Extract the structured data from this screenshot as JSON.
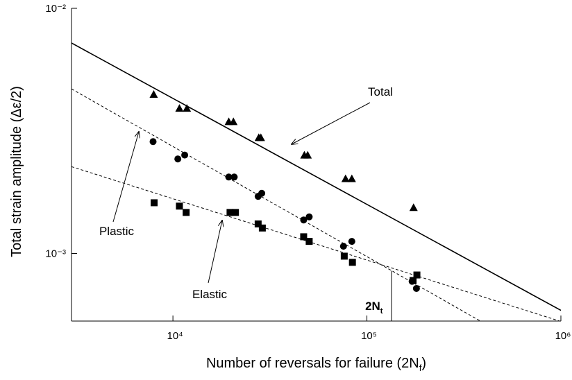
{
  "chart_data": {
    "type": "scatter",
    "xlabel": {
      "text": "Number of reversals for failure (2N",
      "subscript": "f",
      "suffix": ")"
    },
    "ylabel": "Total strain amplitude  (Δε/2)",
    "xscale": "log",
    "yscale": "log",
    "xlim": [
      3000,
      1000000
    ],
    "ylim": [
      0.00053,
      0.01
    ],
    "xticks": [
      {
        "value": 10000,
        "label": "10⁴"
      },
      {
        "value": 100000,
        "label": "10⁵"
      },
      {
        "value": 1000000,
        "label": "10⁶"
      }
    ],
    "yticks": [
      {
        "value": 0.001,
        "label": "10⁻³"
      },
      {
        "value": 0.01,
        "label": "10⁻²"
      }
    ],
    "series": [
      {
        "name": "Total",
        "marker": "triangle",
        "color": "#000000",
        "x": [
          7960,
          10800,
          11800,
          19400,
          20500,
          27700,
          28400,
          47600,
          49500,
          77600,
          83600,
          174000
        ],
        "values": [
          0.00446,
          0.00391,
          0.00391,
          0.00345,
          0.00345,
          0.00297,
          0.00297,
          0.00252,
          0.00252,
          0.00202,
          0.00202,
          0.00154
        ],
        "fit": {
          "dash": false,
          "x": [
            3000,
            1000000
          ],
          "values": [
            0.00722,
            0.000586
          ]
        }
      },
      {
        "name": "Plastic",
        "marker": "circle",
        "color": "#000000",
        "x": [
          7900,
          10600,
          11500,
          19400,
          20700,
          27500,
          28700,
          47200,
          50400,
          75700,
          83600,
          171000,
          180000
        ],
        "values": [
          0.00286,
          0.00243,
          0.00252,
          0.00205,
          0.00205,
          0.00171,
          0.00176,
          0.00137,
          0.00141,
          0.00107,
          0.00112,
          0.00077,
          0.00072
        ],
        "fit": {
          "dash": true,
          "x": [
            3000,
            388000
          ],
          "values": [
            0.00469,
            0.000528
          ]
        }
      },
      {
        "name": "Elastic",
        "marker": "square",
        "color": "#000000",
        "x": [
          8000,
          10800,
          11700,
          19700,
          21000,
          27500,
          28900,
          47200,
          50400,
          76400,
          84200,
          173000,
          181000
        ],
        "values": [
          0.00161,
          0.00156,
          0.00147,
          0.00147,
          0.00147,
          0.00132,
          0.00127,
          0.00117,
          0.00112,
          0.000975,
          0.00092,
          0.000776,
          0.000817
        ],
        "fit": {
          "dash": true,
          "x": [
            3000,
            1000000
          ],
          "values": [
            0.00226,
            0.000528
          ]
        }
      }
    ],
    "transition": {
      "x": 134000,
      "value": 0.00085,
      "label": "2N",
      "subscript": "t"
    }
  }
}
